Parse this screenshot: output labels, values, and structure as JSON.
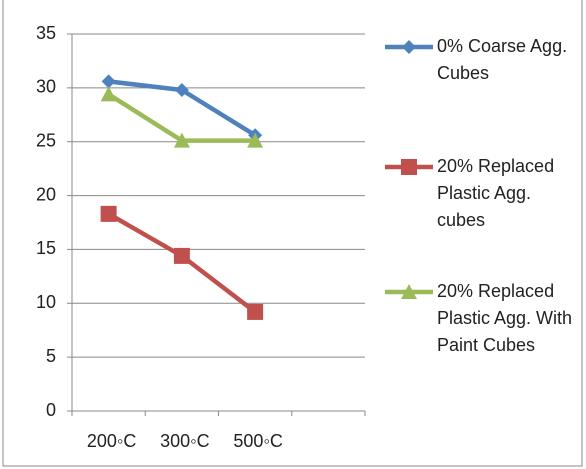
{
  "chart_data": {
    "type": "line",
    "categories": [
      "200◦C",
      "300◦C",
      "500◦C",
      null
    ],
    "series": [
      {
        "name": "0% Coarse Agg. Cubes",
        "color": "#4f81bd",
        "marker": "diamond",
        "values": [
          30.6,
          29.8,
          25.6,
          null
        ]
      },
      {
        "name": "20% Replaced Plastic Agg. cubes",
        "color": "#c0504d",
        "marker": "square",
        "values": [
          18.3,
          14.4,
          9.2,
          null
        ]
      },
      {
        "name": "20% Replaced Plastic Agg. With Paint Cubes",
        "color": "#9bbb59",
        "marker": "triangle",
        "values": [
          29.4,
          25.1,
          25.1,
          null
        ]
      }
    ],
    "ylim": [
      0,
      35
    ],
    "yticks": [
      0,
      5,
      10,
      15,
      20,
      25,
      30,
      35
    ],
    "grid": true,
    "legend": "right"
  }
}
